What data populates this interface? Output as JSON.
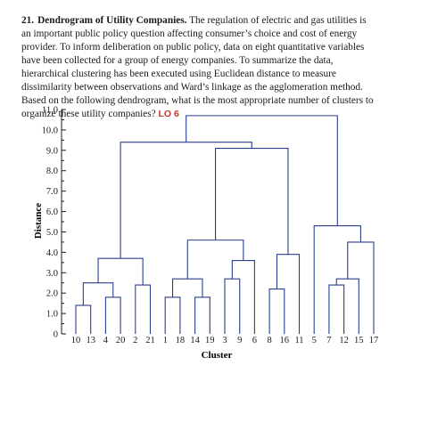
{
  "problem": {
    "number": "21.",
    "title": "Dendrogram of Utility Companies.",
    "body": "The regulation of electric and gas utilities is an important public policy question affecting consumer’s choice and cost of energy provider. To inform deliberation on public policy, data on eight quantitative variables have been collected for a group of energy companies. To summarize the data, hierarchical clustering has been executed using Euclidean distance to measure dissimilarity between observations and Ward’s linkage as the agglomeration method. Based on the following dendrogram, what is the most appropriate number of clusters to organize these utility companies?",
    "lo": "LO 6"
  },
  "chart_data": {
    "type": "dendrogram",
    "xlabel": "Cluster",
    "ylabel": "Distance",
    "ylim": [
      0,
      11
    ],
    "yticks": [
      "0",
      "1.0",
      "2.0",
      "3.0",
      "4.0",
      "5.0",
      "6.0",
      "7.0",
      "8.0",
      "9.0",
      "10.0",
      "11.0"
    ],
    "leaves": [
      "10",
      "13",
      "4",
      "20",
      "2",
      "21",
      "1",
      "18",
      "14",
      "19",
      "3",
      "9",
      "6",
      "8",
      "16",
      "11",
      "5",
      "7",
      "12",
      "15",
      "17"
    ],
    "merges": [
      {
        "id": "m1",
        "left": "10",
        "right": "13",
        "height": 1.4
      },
      {
        "id": "m2",
        "left": "4",
        "right": "20",
        "height": 1.8
      },
      {
        "id": "m3",
        "left": "m1",
        "right": "m2",
        "height": 2.5
      },
      {
        "id": "m4",
        "left": "2",
        "right": "21",
        "height": 2.4
      },
      {
        "id": "m5",
        "left": "m3",
        "right": "m4",
        "height": 3.7
      },
      {
        "id": "m6",
        "left": "1",
        "right": "18",
        "height": 1.8
      },
      {
        "id": "m7",
        "left": "14",
        "right": "19",
        "height": 1.8
      },
      {
        "id": "m8",
        "left": "m6",
        "right": "m7",
        "height": 2.7
      },
      {
        "id": "m9",
        "left": "3",
        "right": "9",
        "height": 2.7
      },
      {
        "id": "m10",
        "left": "m9",
        "right": "6",
        "height": 3.6
      },
      {
        "id": "m11",
        "left": "m8",
        "right": "m10",
        "height": 4.6
      },
      {
        "id": "m12",
        "left": "8",
        "right": "16",
        "height": 2.2
      },
      {
        "id": "m13",
        "left": "m12",
        "right": "11",
        "height": 3.9
      },
      {
        "id": "m14",
        "left": "m11",
        "right": "m13",
        "height": 9.1
      },
      {
        "id": "m15",
        "left": "m5",
        "right": "m14",
        "height": 9.4
      },
      {
        "id": "m16",
        "left": "7",
        "right": "12",
        "height": 2.4
      },
      {
        "id": "m17",
        "left": "m16",
        "right": "15",
        "height": 2.7
      },
      {
        "id": "m18",
        "left": "m17",
        "right": "17",
        "height": 4.5
      },
      {
        "id": "m19",
        "left": "5",
        "right": "m18",
        "height": 5.3
      },
      {
        "id": "m20",
        "left": "m15",
        "right": "m19",
        "height": 10.7
      }
    ],
    "colors": {
      "line": "#2b3f8f",
      "axis": "#1a1a1a",
      "text": "#1a1a1a"
    }
  }
}
